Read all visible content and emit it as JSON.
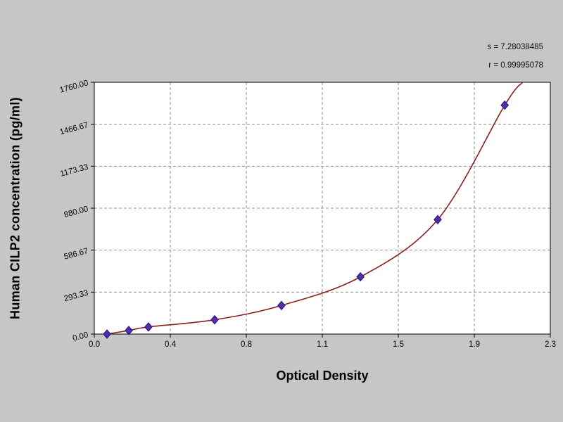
{
  "chart_data": {
    "type": "line",
    "title": "",
    "xlabel": "Optical Density",
    "ylabel": "Human CILP2 concentration (pg/ml)",
    "xlim": [
      0,
      2.3
    ],
    "ylim": [
      0,
      1760
    ],
    "grid": true,
    "legend": "none",
    "x_tick_labels": [
      "0.0",
      "0.4",
      "0.8",
      "1.1",
      "1.5",
      "1.9",
      "2.3"
    ],
    "y_tick_labels": [
      "0.00",
      "293.33",
      "586.67",
      "880.00",
      "1173.33",
      "1466.67",
      "1760.00"
    ],
    "annotations": {
      "line1": "s = 7.28038485",
      "line2": "r = 0.99995078"
    },
    "series": [
      {
        "name": "standard-points",
        "type": "scatter",
        "marker": "diamond",
        "color": "#4a2fae",
        "edge_color": "#2a1570",
        "od": [
          0.064,
          0.174,
          0.273,
          0.607,
          0.944,
          1.342,
          1.732,
          2.07
        ],
        "concentration": [
          0,
          25,
          50,
          100,
          200,
          400,
          800,
          1600
        ]
      },
      {
        "name": "fitted-curve",
        "type": "line",
        "color": "#8b2020",
        "extends_to": {
          "od": 2.16,
          "concentration": 1760
        }
      }
    ],
    "colors": {
      "background": "#c6c6c6",
      "plot_background": "#ffffff",
      "grid": "#8f8f8f",
      "frame": "#000000",
      "text": "#000000"
    }
  }
}
